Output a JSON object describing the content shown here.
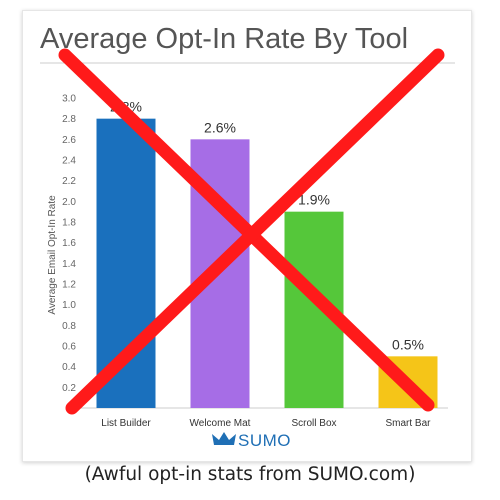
{
  "chart_data": {
    "type": "bar",
    "title": "Average Opt-In Rate By Tool",
    "xlabel": "",
    "ylabel": "Average Email Opt-In Rate",
    "ylim": [
      0,
      3.0
    ],
    "yticks": [
      "0",
      "0.2",
      "0.4",
      "0.6",
      "0.8",
      "1.0",
      "1.2",
      "1.4",
      "1.6",
      "1.8",
      "2.0",
      "2.2",
      "2.4",
      "2.6",
      "2.8",
      "3.0"
    ],
    "categories": [
      "List Builder",
      "Welcome Mat",
      "Scroll Box",
      "Smart Bar"
    ],
    "values": [
      2.8,
      2.6,
      1.9,
      0.5
    ],
    "data_labels": [
      "2.8%",
      "2.6%",
      "1.9%",
      "0.5%"
    ],
    "bar_colors": [
      "#1a70bd",
      "#a66de6",
      "#55c73a",
      "#f5c518"
    ],
    "grid": false,
    "legend": "none"
  },
  "branding": {
    "logo_text": "SUMO",
    "logo_color": "#1f6fb5",
    "logo_icon": "crown-icon"
  },
  "overlay": {
    "icon": "red-x-icon",
    "color": "#ff1a1a"
  },
  "caption": "(Awful opt-in stats from SUMO.com)"
}
